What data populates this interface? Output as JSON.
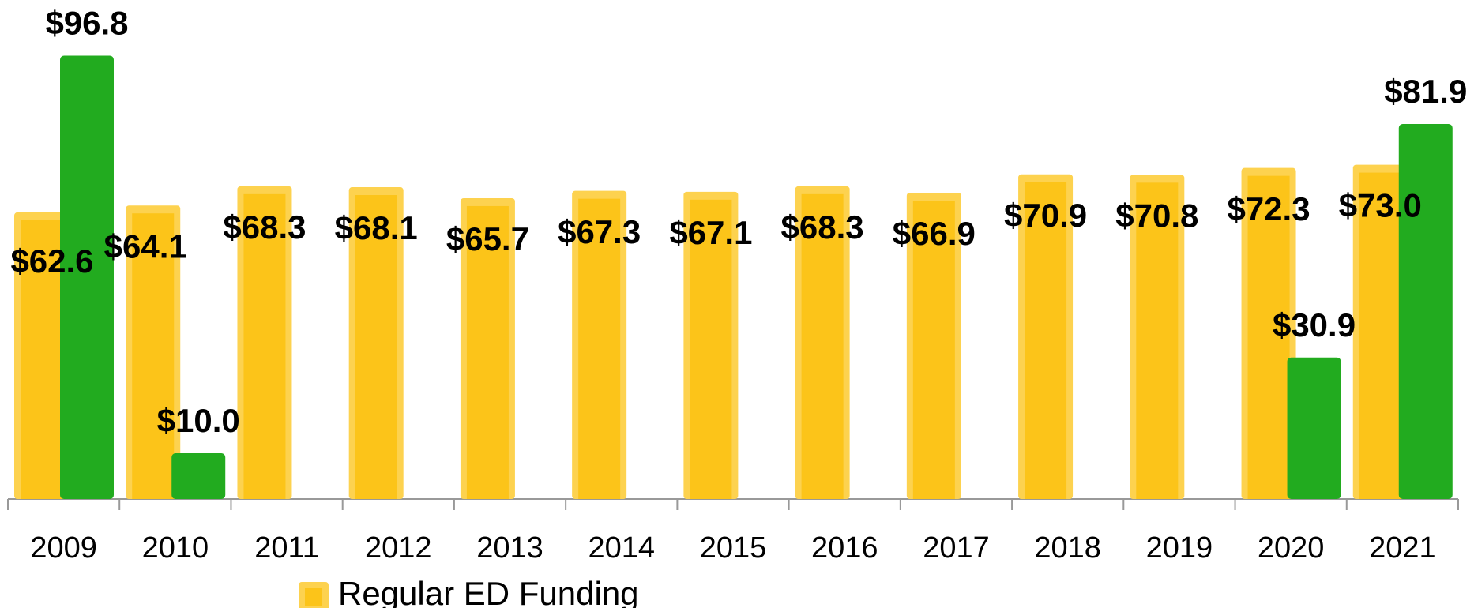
{
  "chart_data": {
    "type": "bar",
    "categories": [
      "2009",
      "2010",
      "2011",
      "2012",
      "2013",
      "2014",
      "2015",
      "2016",
      "2017",
      "2018",
      "2019",
      "2020",
      "2021"
    ],
    "series": [
      {
        "name": "Regular ED Funding",
        "color": "#fcc419",
        "values": [
          62.6,
          64.1,
          68.3,
          68.1,
          65.7,
          67.3,
          67.1,
          68.3,
          66.9,
          70.9,
          70.8,
          72.3,
          73.0
        ],
        "value_labels": [
          "$62.6",
          "$64.1",
          "$68.3",
          "$68.1",
          "$65.7",
          "$67.3",
          "$67.1",
          "$68.3",
          "$66.9",
          "$70.9",
          "$70.8",
          "$72.3",
          "$73.0"
        ]
      },
      {
        "color": "#22ab1f",
        "values": [
          96.8,
          10.0,
          null,
          null,
          null,
          null,
          null,
          null,
          null,
          null,
          null,
          30.9,
          81.9
        ],
        "value_labels": [
          "$96.8",
          "$10.0",
          null,
          null,
          null,
          null,
          null,
          null,
          null,
          null,
          null,
          "$30.9",
          "$81.9"
        ]
      }
    ],
    "ylim": [
      0,
      100
    ]
  }
}
